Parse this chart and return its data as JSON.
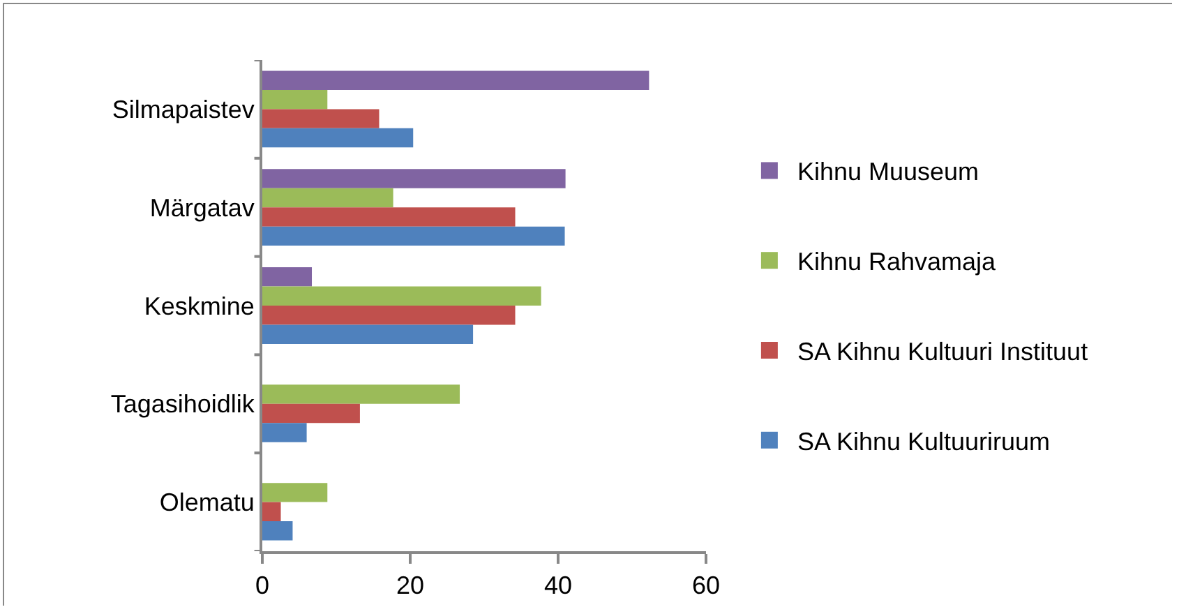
{
  "chart_data": {
    "type": "bar",
    "orientation": "horizontal",
    "categories": [
      "Silmapaistev",
      "Märgatav",
      "Keskmine",
      "Tagasihoidlik",
      "Olematu"
    ],
    "series": [
      {
        "name": "Kihnu Muuseum",
        "color": "#8064a2",
        "values": [
          52.3,
          41,
          6.7,
          0,
          0
        ]
      },
      {
        "name": "Kihnu Rahvamaja",
        "color": "#9bbb59",
        "values": [
          8.8,
          17.7,
          37.7,
          26.7,
          8.8
        ]
      },
      {
        "name": "SA Kihnu Kultuuri Instituut",
        "color": "#c0504d",
        "values": [
          15.8,
          34.2,
          34.2,
          13.2,
          2.5
        ]
      },
      {
        "name": "SA Kihnu Kultuuriruum",
        "color": "#4f81bd",
        "values": [
          20.4,
          40.9,
          28.5,
          6,
          4.1
        ]
      }
    ],
    "xlim": [
      0,
      60
    ],
    "xticks": [
      0,
      20,
      40,
      60
    ],
    "grid": false,
    "legend": "right"
  }
}
